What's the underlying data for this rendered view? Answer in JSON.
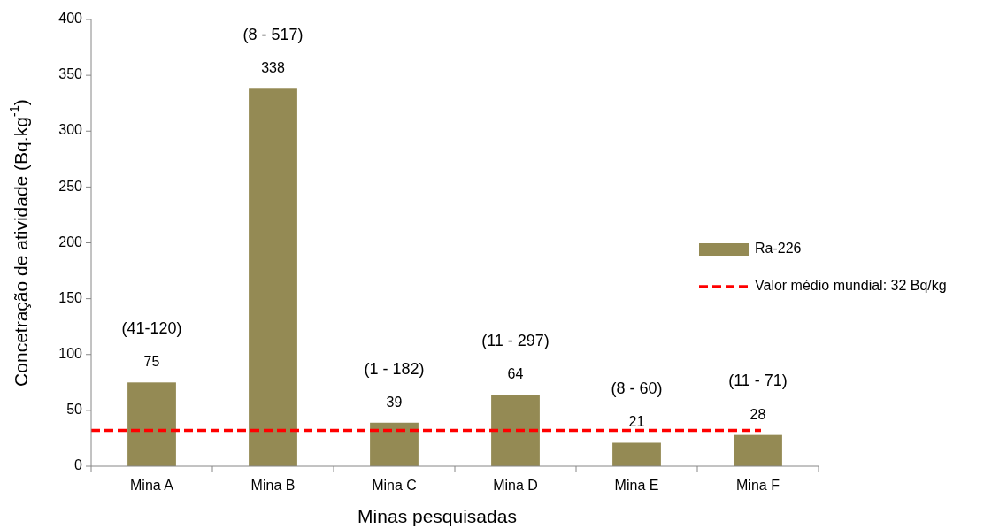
{
  "chart_data": {
    "type": "bar",
    "xlabel": "Minas pesquisadas",
    "ylabel": "Concetração de atividade (Bq.kg$^{-1}$)",
    "categories": [
      "Mina A",
      "Mina B",
      "Mina C",
      "Mina D",
      "Mina E",
      "Mina F"
    ],
    "series": [
      {
        "name": "Ra-226",
        "color": "#948a54",
        "values": [
          75,
          338,
          39,
          64,
          21,
          28
        ]
      }
    ],
    "data_labels": true,
    "ylim": [
      0,
      400
    ],
    "yticks": [
      0,
      50,
      100,
      150,
      200,
      250,
      300,
      350,
      400
    ],
    "ref_lines": [
      {
        "axis": "y",
        "value": 32,
        "label": "Valor médio mundial: 32 Bq/kg",
        "color": "#ff0000",
        "line_style": "dashed"
      }
    ],
    "annotations": [
      "(41-120)",
      "(8 - 517)",
      "(1 - 182)",
      "(11 - 297)",
      "(8 - 60)",
      "(11 - 71)"
    ],
    "legend": "right"
  }
}
